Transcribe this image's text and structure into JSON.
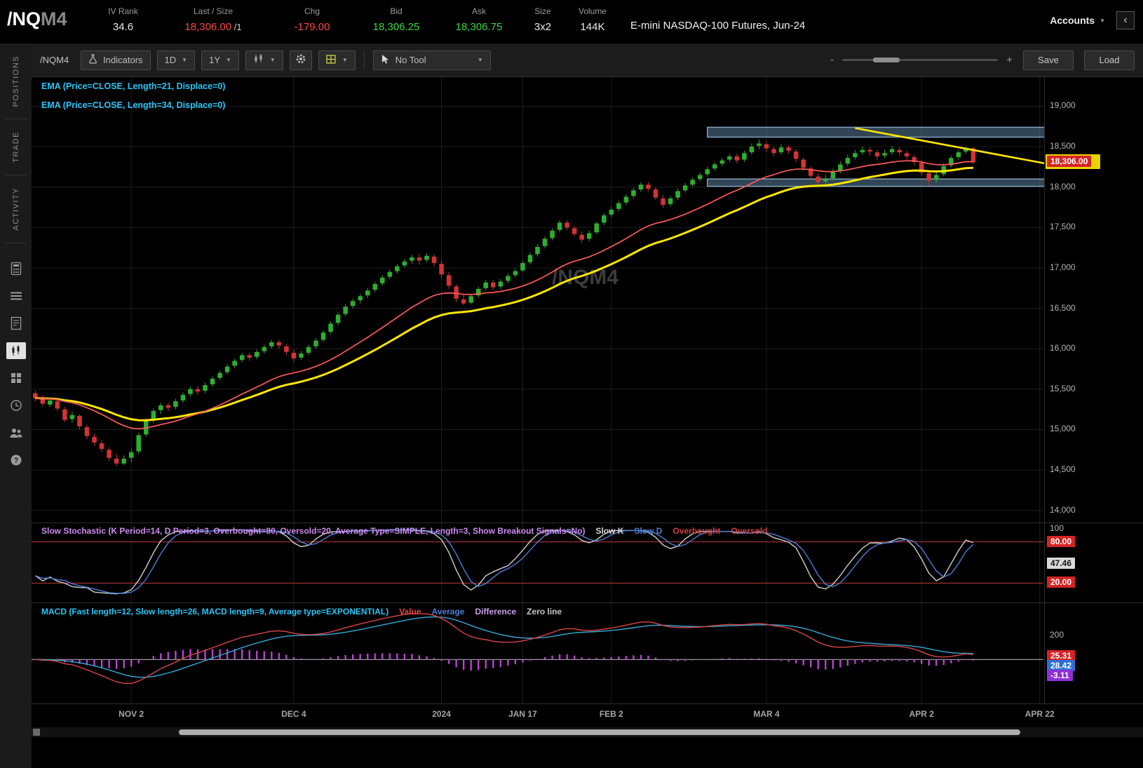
{
  "header": {
    "symbol": "/NQ",
    "symbol_suffix": "M4",
    "fields": [
      {
        "label": "IV Rank",
        "value": "34.6",
        "color": "white"
      },
      {
        "label": "Last / Size",
        "value": "18,306.00",
        "suffix": " /1",
        "color": "red"
      },
      {
        "label": "Chg",
        "value": "-179.00",
        "color": "red"
      },
      {
        "label": "Bid",
        "value": "18,306.25",
        "color": "green"
      },
      {
        "label": "Ask",
        "value": "18,306.75",
        "color": "green"
      },
      {
        "label": "Size",
        "value": "3x2",
        "color": "white"
      },
      {
        "label": "Volume",
        "value": "144K",
        "color": "white"
      }
    ],
    "description": "E-mini NASDAQ-100 Futures, Jun-24",
    "accounts_label": "Accounts"
  },
  "sidebar": {
    "tabs": [
      "POSITIONS",
      "TRADE",
      "ACTIVITY"
    ],
    "icons": [
      "calculator-icon",
      "menu-list-icon",
      "ledger-icon",
      "chart-icon",
      "apps-grid-icon",
      "history-clock-icon",
      "community-icon",
      "help-icon"
    ],
    "active_icon": "chart-icon"
  },
  "toolbar": {
    "symbol_label": "/NQM4",
    "indicators_label": "Indicators",
    "timeframe": "1D",
    "range": "1Y",
    "tool_label": "No Tool",
    "zoom_minus": "-",
    "zoom_plus": "+",
    "save_label": "Save",
    "load_label": "Load"
  },
  "studies": {
    "ema1": "EMA (Price=CLOSE, Length=21, Displace=0)",
    "ema2": "EMA (Price=CLOSE, Length=34, Displace=0)",
    "stoch_title": "Slow Stochastic (K Period=14, D Period=3, Overbought=80, Oversold=20, Average Type=SIMPLE, Length=3, Show Breakout Signals=No)",
    "stoch_title_color": "#cf8bf2",
    "stoch_legend": [
      {
        "label": "Slow K",
        "color": "#d8d8d8"
      },
      {
        "label": "Slow D",
        "color": "#4d7fd6"
      },
      {
        "label": "Overbought",
        "color": "#d04040"
      },
      {
        "label": "Oversold",
        "color": "#d04040"
      }
    ],
    "macd_title": "MACD (Fast length=12, Slow length=26, MACD length=9, Average type=EXPONENTIAL)",
    "macd_title_color": "#2bc4f5",
    "macd_legend": [
      {
        "label": "Value",
        "color": "#e04848"
      },
      {
        "label": "Average",
        "color": "#4d7fd6"
      },
      {
        "label": "Difference",
        "color": "#c9a0e8"
      },
      {
        "label": "Zero line",
        "color": "#c8c8c8"
      }
    ]
  },
  "chart_data": {
    "type": "candlestick",
    "symbol": "/NQM4",
    "watermark": "/NQM4",
    "total_slots": 137,
    "x_labels": [
      {
        "label": "NOV 2",
        "index": 13
      },
      {
        "label": "DEC 4",
        "index": 35
      },
      {
        "label": "2024",
        "index": 55
      },
      {
        "label": "JAN 17",
        "index": 66
      },
      {
        "label": "FEB 2",
        "index": 78
      },
      {
        "label": "MAR 4",
        "index": 99
      },
      {
        "label": "APR 2",
        "index": 120
      },
      {
        "label": "APR 22",
        "index": 136
      }
    ],
    "price_axis": {
      "min": 13850,
      "max": 19360,
      "ticks": [
        {
          "label": "19,000",
          "value": 19000
        },
        {
          "label": "18,500",
          "value": 18500
        },
        {
          "label": "18,000",
          "value": 18000
        },
        {
          "label": "17,500",
          "value": 17500
        },
        {
          "label": "17,000",
          "value": 17000
        },
        {
          "label": "16,500",
          "value": 16500
        },
        {
          "label": "16,000",
          "value": 16000
        },
        {
          "label": "15,500",
          "value": 15500
        },
        {
          "label": "15,000",
          "value": 15000
        },
        {
          "label": "14,500",
          "value": 14500
        },
        {
          "label": "14,000",
          "value": 14000
        }
      ]
    },
    "last_price": {
      "label": "18,306.00",
      "value": 18306
    },
    "overlays": {
      "ema_fast_length": 21,
      "ema_slow_length": 34
    },
    "drawings": {
      "upper_band": {
        "start_index": 91,
        "price_top": 18740,
        "price_bottom": 18618
      },
      "lower_band": {
        "start_index": 91,
        "price_top": 18100,
        "price_bottom": 18010
      },
      "trendline": {
        "index1": 111,
        "price1": 18730,
        "index2": 136.6,
        "price2": 18295
      }
    },
    "stochastic": {
      "k_period": 14,
      "d_period": 3,
      "overbought": 80,
      "oversold": 20,
      "top_label": "100",
      "bubbles": [
        {
          "text": "80.00",
          "color": "red",
          "value": 80
        },
        {
          "text": "47.46",
          "color": "gray",
          "value": 47.46
        },
        {
          "text": "20.00",
          "color": "red",
          "value": 20
        }
      ]
    },
    "macd": {
      "fast": 12,
      "slow": 26,
      "signal": 9,
      "axis_label": "200",
      "axis_value": 200,
      "bubble_anchor": 25.31,
      "bubbles": [
        {
          "text": "25.31",
          "color": "red"
        },
        {
          "text": "28.42",
          "color": "blue"
        },
        {
          "text": "-3.11",
          "color": "purple"
        }
      ]
    },
    "colors": {
      "up": "#2fae2f",
      "down": "#d13434",
      "ema21": "#ff5a5a",
      "ema34": "#ffe600",
      "band_fill": "rgba(90,125,155,0.55)",
      "band_stroke": "#85a8c4",
      "trendline": "#ffe600",
      "stoch_k": "#d0d0d0",
      "stoch_d": "#4d7fd6",
      "stoch_level": "#c23b3b",
      "macd_value": "#d94545",
      "macd_avg": "#35a8d6",
      "macd_hist": "#bd3fd6",
      "zero_line": "#999999",
      "grid": "#1e1e1e",
      "watermark": "#3c3c3c",
      "last_price_bg": "#d62323"
    },
    "candles": [
      [
        15450,
        15480,
        15350,
        15390
      ],
      [
        15390,
        15420,
        15290,
        15320
      ],
      [
        15310,
        15390,
        15280,
        15360
      ],
      [
        15350,
        15380,
        15230,
        15260
      ],
      [
        15250,
        15280,
        15090,
        15120
      ],
      [
        15130,
        15220,
        15080,
        15180
      ],
      [
        15170,
        15190,
        15000,
        15040
      ],
      [
        15030,
        15060,
        14880,
        14920
      ],
      [
        14910,
        14950,
        14800,
        14840
      ],
      [
        14830,
        14870,
        14720,
        14760
      ],
      [
        14750,
        14780,
        14610,
        14650
      ],
      [
        14640,
        14700,
        14550,
        14580
      ],
      [
        14580,
        14680,
        14560,
        14640
      ],
      [
        14650,
        14760,
        14600,
        14720
      ],
      [
        14730,
        14960,
        14700,
        14930
      ],
      [
        14940,
        15140,
        14910,
        15110
      ],
      [
        15120,
        15260,
        15080,
        15230
      ],
      [
        15240,
        15330,
        15190,
        15300
      ],
      [
        15300,
        15330,
        15230,
        15270
      ],
      [
        15280,
        15380,
        15250,
        15350
      ],
      [
        15360,
        15460,
        15330,
        15430
      ],
      [
        15440,
        15530,
        15410,
        15500
      ],
      [
        15500,
        15540,
        15430,
        15470
      ],
      [
        15480,
        15580,
        15450,
        15550
      ],
      [
        15560,
        15660,
        15530,
        15630
      ],
      [
        15640,
        15730,
        15610,
        15700
      ],
      [
        15710,
        15810,
        15680,
        15780
      ],
      [
        15790,
        15880,
        15760,
        15850
      ],
      [
        15860,
        15950,
        15830,
        15920
      ],
      [
        15920,
        15950,
        15850,
        15890
      ],
      [
        15900,
        15990,
        15870,
        15960
      ],
      [
        15970,
        16050,
        15940,
        16020
      ],
      [
        16030,
        16110,
        16000,
        16080
      ],
      [
        16080,
        16110,
        16000,
        16040
      ],
      [
        16030,
        16060,
        15920,
        15960
      ],
      [
        15950,
        15990,
        15840,
        15880
      ],
      [
        15890,
        15970,
        15860,
        15940
      ],
      [
        15950,
        16050,
        15920,
        16020
      ],
      [
        16030,
        16130,
        16000,
        16100
      ],
      [
        16110,
        16230,
        16080,
        16200
      ],
      [
        16210,
        16340,
        16180,
        16310
      ],
      [
        16320,
        16450,
        16290,
        16420
      ],
      [
        16430,
        16550,
        16400,
        16520
      ],
      [
        16530,
        16620,
        16500,
        16590
      ],
      [
        16600,
        16680,
        16560,
        16650
      ],
      [
        16660,
        16750,
        16630,
        16720
      ],
      [
        16730,
        16830,
        16700,
        16800
      ],
      [
        16810,
        16910,
        16780,
        16880
      ],
      [
        16890,
        16980,
        16860,
        16950
      ],
      [
        16960,
        17050,
        16930,
        17020
      ],
      [
        17030,
        17110,
        17000,
        17080
      ],
      [
        17090,
        17160,
        17050,
        17130
      ],
      [
        17130,
        17170,
        17040,
        17090
      ],
      [
        17100,
        17180,
        17070,
        17150
      ],
      [
        17140,
        17170,
        17020,
        17060
      ],
      [
        17050,
        17090,
        16880,
        16920
      ],
      [
        16910,
        16950,
        16740,
        16780
      ],
      [
        16770,
        16800,
        16580,
        16620
      ],
      [
        16610,
        16680,
        16540,
        16560
      ],
      [
        16570,
        16680,
        16550,
        16650
      ],
      [
        16660,
        16770,
        16630,
        16740
      ],
      [
        16750,
        16850,
        16720,
        16820
      ],
      [
        16820,
        16850,
        16730,
        16760
      ],
      [
        16770,
        16860,
        16740,
        16830
      ],
      [
        16840,
        16930,
        16810,
        16900
      ],
      [
        16910,
        16990,
        16880,
        16960
      ],
      [
        16970,
        17090,
        16950,
        17060
      ],
      [
        17070,
        17190,
        17040,
        17160
      ],
      [
        17170,
        17290,
        17140,
        17260
      ],
      [
        17270,
        17390,
        17240,
        17360
      ],
      [
        17370,
        17490,
        17340,
        17460
      ],
      [
        17470,
        17590,
        17440,
        17560
      ],
      [
        17560,
        17590,
        17470,
        17500
      ],
      [
        17490,
        17520,
        17390,
        17420
      ],
      [
        17410,
        17450,
        17310,
        17350
      ],
      [
        17360,
        17460,
        17330,
        17430
      ],
      [
        17440,
        17570,
        17420,
        17550
      ],
      [
        17560,
        17680,
        17530,
        17650
      ],
      [
        17660,
        17750,
        17630,
        17720
      ],
      [
        17730,
        17830,
        17700,
        17800
      ],
      [
        17810,
        17910,
        17780,
        17880
      ],
      [
        17890,
        17990,
        17860,
        17960
      ],
      [
        17970,
        18060,
        17940,
        18030
      ],
      [
        18030,
        18060,
        17950,
        17980
      ],
      [
        17970,
        18000,
        17840,
        17870
      ],
      [
        17860,
        17900,
        17740,
        17780
      ],
      [
        17790,
        17890,
        17760,
        17860
      ],
      [
        17870,
        17980,
        17840,
        17950
      ],
      [
        17960,
        18050,
        17930,
        18020
      ],
      [
        18030,
        18120,
        18000,
        18090
      ],
      [
        18100,
        18180,
        18070,
        18150
      ],
      [
        18160,
        18250,
        18130,
        18220
      ],
      [
        18230,
        18310,
        18200,
        18280
      ],
      [
        18290,
        18360,
        18260,
        18330
      ],
      [
        18340,
        18410,
        18310,
        18380
      ],
      [
        18380,
        18410,
        18290,
        18330
      ],
      [
        18340,
        18450,
        18310,
        18420
      ],
      [
        18430,
        18540,
        18400,
        18500
      ],
      [
        18510,
        18590,
        18470,
        18540
      ],
      [
        18530,
        18560,
        18440,
        18480
      ],
      [
        18470,
        18500,
        18380,
        18420
      ],
      [
        18430,
        18530,
        18400,
        18490
      ],
      [
        18490,
        18520,
        18410,
        18450
      ],
      [
        18440,
        18470,
        18310,
        18350
      ],
      [
        18340,
        18370,
        18200,
        18240
      ],
      [
        18230,
        18260,
        18090,
        18140
      ],
      [
        18130,
        18170,
        18010,
        18060
      ],
      [
        18070,
        18150,
        18030,
        18100
      ],
      [
        18110,
        18230,
        18080,
        18190
      ],
      [
        18200,
        18320,
        18170,
        18280
      ],
      [
        18290,
        18400,
        18260,
        18360
      ],
      [
        18370,
        18460,
        18340,
        18420
      ],
      [
        18430,
        18500,
        18400,
        18460
      ],
      [
        18460,
        18490,
        18390,
        18440
      ],
      [
        18430,
        18460,
        18340,
        18380
      ],
      [
        18390,
        18460,
        18360,
        18420
      ],
      [
        18430,
        18510,
        18400,
        18470
      ],
      [
        18460,
        18490,
        18390,
        18430
      ],
      [
        18420,
        18450,
        18340,
        18380
      ],
      [
        18370,
        18400,
        18270,
        18310
      ],
      [
        18300,
        18330,
        18140,
        18180
      ],
      [
        18170,
        18210,
        18020,
        18080
      ],
      [
        18090,
        18190,
        18060,
        18150
      ],
      [
        18160,
        18290,
        18130,
        18260
      ],
      [
        18270,
        18390,
        18240,
        18360
      ],
      [
        18370,
        18460,
        18340,
        18430
      ],
      [
        18440,
        18500,
        18410,
        18485
      ],
      [
        18480,
        18490,
        18280,
        18306
      ]
    ]
  }
}
